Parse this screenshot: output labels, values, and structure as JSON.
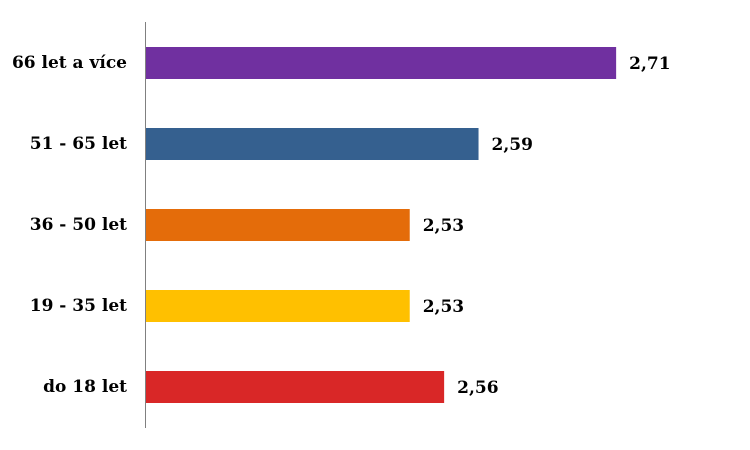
{
  "chart_data": {
    "type": "bar",
    "orientation": "horizontal",
    "categories": [
      "66 let a více",
      "51 - 65 let",
      "36 - 50 let",
      "19 - 35 let",
      "do 18 let"
    ],
    "values": [
      2.71,
      2.59,
      2.53,
      2.53,
      2.56
    ],
    "value_labels": [
      "2,71",
      "2,59",
      "2,53",
      "2,53",
      "2,56"
    ],
    "colors": [
      "#7030A0",
      "#35608F",
      "#E46C0A",
      "#FFC000",
      "#D92727"
    ],
    "xlim": [
      2.3,
      2.75
    ],
    "grid": false,
    "legend": "none"
  }
}
